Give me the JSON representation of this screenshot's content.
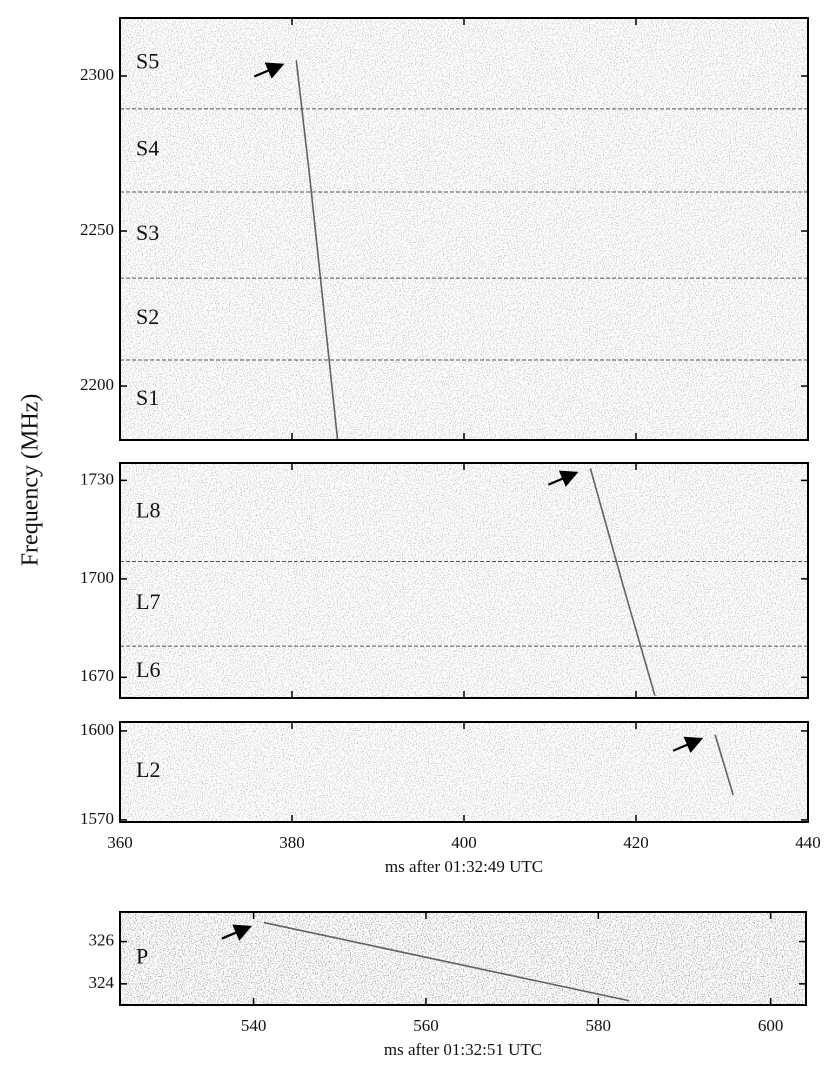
{
  "chart_data": [
    {
      "type": "line",
      "ylabel": "Frequency (MHz)",
      "xlim": [
        360,
        440
      ],
      "xticks": [
        360,
        380,
        400,
        420,
        440
      ],
      "show_xtick_labels": false,
      "ylim": [
        2182.6,
        2318.7
      ],
      "yticks": [
        2200,
        2250,
        2300
      ],
      "bands": [
        "S1",
        "S2",
        "S3",
        "S4",
        "S5"
      ],
      "band_edges": [
        2208.4,
        2234.8,
        2262.6,
        2289.4
      ],
      "series": [
        {
          "color": "#333333",
          "x": [
            380.5,
            382.1,
            385.3
          ],
          "values": [
            2305,
            2266.5,
            2182.6
          ]
        }
      ]
    },
    {
      "type": "line",
      "xlim": [
        360,
        440
      ],
      "xticks": [
        360,
        380,
        400,
        420,
        440
      ],
      "show_xtick_labels": false,
      "ylim": [
        1663.7,
        1735.3
      ],
      "yticks": [
        1670,
        1700,
        1730
      ],
      "bands": [
        "L6",
        "L7",
        "L8"
      ],
      "band_edges": [
        1679.5,
        1705.3
      ],
      "series": [
        {
          "color": "#333333",
          "x": [
            414.7,
            418.5,
            422.2
          ],
          "values": [
            1733.6,
            1698,
            1664.4
          ]
        }
      ]
    },
    {
      "type": "line",
      "xlim": [
        360,
        440
      ],
      "xticks": [
        360,
        380,
        400,
        420,
        440
      ],
      "show_xtick_labels": true,
      "xlabel": "ms after 01:32:49 UTC",
      "ylim": [
        1569.3,
        1603
      ],
      "yticks": [
        1570,
        1600
      ],
      "bands": [
        "L2"
      ],
      "series": [
        {
          "color": "#333333",
          "x": [
            429.2,
            431.3
          ],
          "values": [
            1598.7,
            1578.4
          ]
        }
      ]
    },
    {
      "type": "line",
      "xlim": [
        524.5,
        604.1
      ],
      "xticks": [
        540,
        560,
        580,
        600
      ],
      "show_xtick_labels": true,
      "xlabel": "ms after 01:32:51 UTC",
      "ylim": [
        323.0,
        327.4
      ],
      "yticks": [
        324,
        326
      ],
      "bands": [
        "P"
      ],
      "series": [
        {
          "color": "#333333",
          "x": [
            541.2,
            583.6
          ],
          "values": [
            326.9,
            323.2
          ]
        }
      ]
    }
  ]
}
